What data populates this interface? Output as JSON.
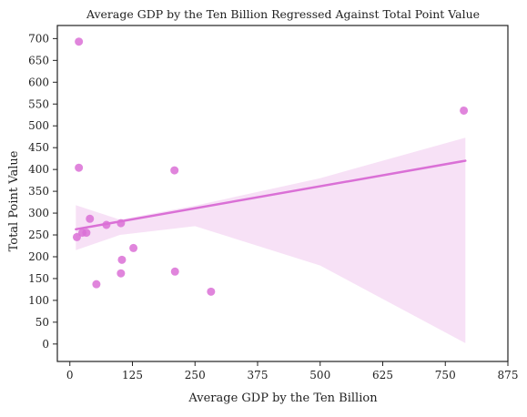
{
  "chart_data": {
    "type": "scatter",
    "title": "Average GDP by the Ten Billion Regressed Against Total Point Value",
    "xlabel": "Average GDP by the Ten Billion",
    "ylabel": "Total Point Value",
    "xlim": [
      -25,
      875
    ],
    "ylim": [
      -40,
      730
    ],
    "xticks": [
      0,
      125,
      250,
      375,
      500,
      625,
      750,
      875
    ],
    "yticks": [
      0,
      50,
      100,
      150,
      200,
      250,
      300,
      350,
      400,
      450,
      500,
      550,
      600,
      650,
      700
    ],
    "grid": false,
    "colors": {
      "points": "#da70d6",
      "regression_line": "#da70d6",
      "confidence_band": "#f7e1f6"
    },
    "points": [
      {
        "x": 18,
        "y": 693
      },
      {
        "x": 18,
        "y": 404
      },
      {
        "x": 209,
        "y": 398
      },
      {
        "x": 787,
        "y": 535
      },
      {
        "x": 40,
        "y": 287
      },
      {
        "x": 73,
        "y": 273
      },
      {
        "x": 102,
        "y": 277
      },
      {
        "x": 25,
        "y": 255
      },
      {
        "x": 33,
        "y": 255
      },
      {
        "x": 14,
        "y": 245
      },
      {
        "x": 127,
        "y": 220
      },
      {
        "x": 104,
        "y": 193
      },
      {
        "x": 102,
        "y": 162
      },
      {
        "x": 210,
        "y": 166
      },
      {
        "x": 53,
        "y": 137
      },
      {
        "x": 282,
        "y": 120
      }
    ],
    "regression": {
      "line": [
        [
          12,
          263
        ],
        [
          790,
          420
        ]
      ],
      "ci_upper": [
        [
          12,
          318
        ],
        [
          100,
          285
        ],
        [
          250,
          317
        ],
        [
          500,
          380
        ],
        [
          790,
          473
        ]
      ],
      "ci_lower": [
        [
          12,
          215
        ],
        [
          100,
          250
        ],
        [
          250,
          270
        ],
        [
          500,
          180
        ],
        [
          790,
          2
        ]
      ]
    }
  }
}
